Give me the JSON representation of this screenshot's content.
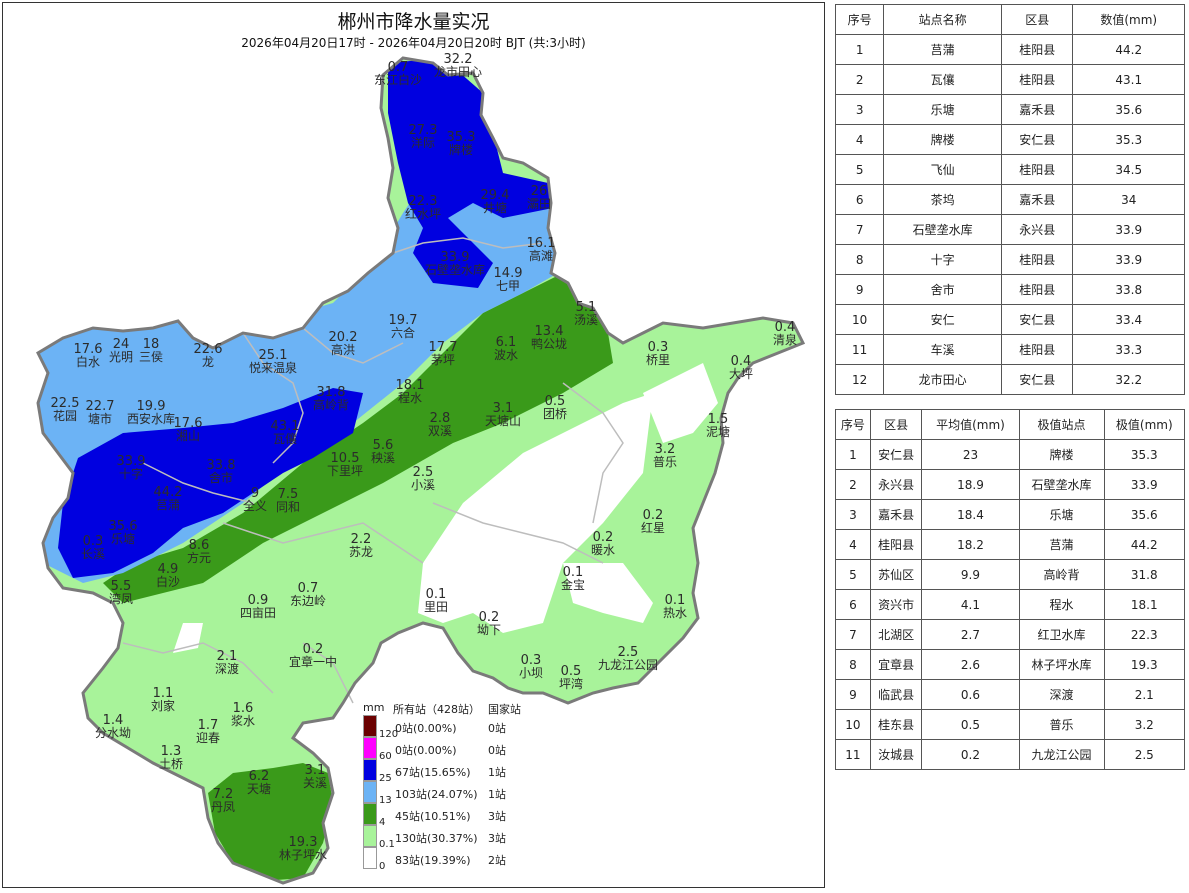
{
  "map": {
    "title": "郴州市降水量实况",
    "subtitle": "2026年04月20日17时 - 2026年04月20日20时 BJT (共:3小时)",
    "colors": {
      "c120": "#6b0000",
      "c60": "#ff00ff",
      "c25": "#0000e0",
      "c13": "#6cb3f5",
      "c4": "#3a9a1a",
      "c01": "#a8f39a",
      "c0": "#ffffff"
    },
    "stations": [
      {
        "v": "0.7",
        "n": "东江白沙"
      },
      {
        "v": "32.2",
        "n": "龙市田心"
      },
      {
        "v": "27.3",
        "n": "洋际"
      },
      {
        "v": "35.3",
        "n": "牌楼"
      },
      {
        "v": "29.4",
        "n": "井塘"
      },
      {
        "v": "26",
        "n": "灞田"
      },
      {
        "v": "22.3",
        "n": "红水坪"
      },
      {
        "v": "33.9",
        "n": "石壁垄水库"
      },
      {
        "v": "14.9",
        "n": "七甲"
      },
      {
        "v": "16.1",
        "n": "高滩"
      },
      {
        "v": "17.6",
        "n": "白水"
      },
      {
        "v": "24",
        "n": "光明"
      },
      {
        "v": "18",
        "n": "三侯"
      },
      {
        "v": "22.6",
        "n": "龙"
      },
      {
        "v": "25.1",
        "n": "悦来温泉"
      },
      {
        "v": "20.2",
        "n": "高洪"
      },
      {
        "v": "19.7",
        "n": "六合"
      },
      {
        "v": "17.7",
        "n": "茅坪"
      },
      {
        "v": "6.1",
        "n": "波水"
      },
      {
        "v": "13.4",
        "n": "鸭公垅"
      },
      {
        "v": "5.1",
        "n": "汤溪"
      },
      {
        "v": "0.3",
        "n": "桥里"
      },
      {
        "v": "0.4",
        "n": "大坪"
      },
      {
        "v": "0.4",
        "n": "清泉"
      },
      {
        "v": "22.5",
        "n": "花园"
      },
      {
        "v": "22.7",
        "n": "塘市"
      },
      {
        "v": "19.9",
        "n": "西安水库"
      },
      {
        "v": "17.6",
        "n": "湘山"
      },
      {
        "v": "31.8",
        "n": "高岭背"
      },
      {
        "v": "43.1",
        "n": "瓦儴"
      },
      {
        "v": "18.1",
        "n": "程水"
      },
      {
        "v": "2.8",
        "n": "双溪"
      },
      {
        "v": "3.1",
        "n": "天塘山"
      },
      {
        "v": "0.5",
        "n": "团桥"
      },
      {
        "v": "1.5",
        "n": "泥塘"
      },
      {
        "v": "33.9",
        "n": "十字"
      },
      {
        "v": "33.8",
        "n": "舍市"
      },
      {
        "v": "44.2",
        "n": "莒蒲"
      },
      {
        "v": "10.5",
        "n": "下里坪"
      },
      {
        "v": "5.6",
        "n": "秧溪"
      },
      {
        "v": "2.5",
        "n": "小溪"
      },
      {
        "v": "3.2",
        "n": "普乐"
      },
      {
        "v": "9",
        "n": "全义"
      },
      {
        "v": "7.5",
        "n": "同和"
      },
      {
        "v": "35.6",
        "n": "乐塘"
      },
      {
        "v": "0.3",
        "n": "长溪"
      },
      {
        "v": "8.6",
        "n": "方元"
      },
      {
        "v": "2.2",
        "n": "苏龙"
      },
      {
        "v": "0.2",
        "n": "暖水"
      },
      {
        "v": "0.2",
        "n": "红星"
      },
      {
        "v": "4.9",
        "n": "白沙"
      },
      {
        "v": "5.5",
        "n": "湾凤"
      },
      {
        "v": "0.9",
        "n": "四亩田"
      },
      {
        "v": "0.7",
        "n": "东边岭"
      },
      {
        "v": "0.1",
        "n": "里田"
      },
      {
        "v": "0.1",
        "n": "金宝"
      },
      {
        "v": "0.1",
        "n": "热水"
      },
      {
        "v": "2.1",
        "n": "深渡"
      },
      {
        "v": "0.2",
        "n": "宜章一中"
      },
      {
        "v": "0.2",
        "n": "坳下"
      },
      {
        "v": "0.3",
        "n": "小坝"
      },
      {
        "v": "0.5",
        "n": "坪湾"
      },
      {
        "v": "2.5",
        "n": "九龙江公园"
      },
      {
        "v": "1.1",
        "n": "刘家"
      },
      {
        "v": "1.6",
        "n": "浆水"
      },
      {
        "v": "1.4",
        "n": "分水坳"
      },
      {
        "v": "1.7",
        "n": "迎春"
      },
      {
        "v": "1.3",
        "n": "土桥"
      },
      {
        "v": "6.2",
        "n": "天塘"
      },
      {
        "v": "3.1",
        "n": "关溪"
      },
      {
        "v": "7.2",
        "n": "丹凤"
      },
      {
        "v": "19.3",
        "n": "林子坪水"
      }
    ],
    "legend": {
      "unit": "mm",
      "col_all": "所有站（428站）",
      "col_nat": "国家站",
      "thresholds": [
        "120",
        "60",
        "25",
        "13",
        "4",
        "0.1",
        "0"
      ],
      "rows": [
        {
          "all": "0站(0.00%)",
          "nat": "0站"
        },
        {
          "all": "0站(0.00%)",
          "nat": "0站"
        },
        {
          "all": "67站(15.65%)",
          "nat": "1站"
        },
        {
          "all": "103站(24.07%)",
          "nat": "1站"
        },
        {
          "all": "45站(10.51%)",
          "nat": "3站"
        },
        {
          "all": "130站(30.37%)",
          "nat": "3站"
        },
        {
          "all": "83站(19.39%)",
          "nat": "2站"
        }
      ]
    }
  },
  "top_stations": {
    "headers": [
      "序号",
      "站点名称",
      "区县",
      "数值(mm)"
    ],
    "rows": [
      [
        "1",
        "莒蒲",
        "桂阳县",
        "44.2"
      ],
      [
        "2",
        "瓦儴",
        "桂阳县",
        "43.1"
      ],
      [
        "3",
        "乐塘",
        "嘉禾县",
        "35.6"
      ],
      [
        "4",
        "牌楼",
        "安仁县",
        "35.3"
      ],
      [
        "5",
        "飞仙",
        "桂阳县",
        "34.5"
      ],
      [
        "6",
        "茶坞",
        "嘉禾县",
        "34"
      ],
      [
        "7",
        "石壁垄水库",
        "永兴县",
        "33.9"
      ],
      [
        "8",
        "十字",
        "桂阳县",
        "33.9"
      ],
      [
        "9",
        "舍市",
        "桂阳县",
        "33.8"
      ],
      [
        "10",
        "安仁",
        "安仁县",
        "33.4"
      ],
      [
        "11",
        "车溪",
        "桂阳县",
        "33.3"
      ],
      [
        "12",
        "龙市田心",
        "安仁县",
        "32.2"
      ]
    ]
  },
  "county_stats": {
    "headers": [
      "序号",
      "区县",
      "平均值(mm)",
      "极值站点",
      "极值(mm)"
    ],
    "rows": [
      [
        "1",
        "安仁县",
        "23",
        "牌楼",
        "35.3"
      ],
      [
        "2",
        "永兴县",
        "18.9",
        "石壁垄水库",
        "33.9"
      ],
      [
        "3",
        "嘉禾县",
        "18.4",
        "乐塘",
        "35.6"
      ],
      [
        "4",
        "桂阳县",
        "18.2",
        "莒蒲",
        "44.2"
      ],
      [
        "5",
        "苏仙区",
        "9.9",
        "高岭背",
        "31.8"
      ],
      [
        "6",
        "资兴市",
        "4.1",
        "程水",
        "18.1"
      ],
      [
        "7",
        "北湖区",
        "2.7",
        "红卫水库",
        "22.3"
      ],
      [
        "8",
        "宜章县",
        "2.6",
        "林子坪水库",
        "19.3"
      ],
      [
        "9",
        "临武县",
        "0.6",
        "深渡",
        "2.1"
      ],
      [
        "10",
        "桂东县",
        "0.5",
        "普乐",
        "3.2"
      ],
      [
        "11",
        "汝城县",
        "0.2",
        "九龙江公园",
        "2.5"
      ]
    ]
  }
}
